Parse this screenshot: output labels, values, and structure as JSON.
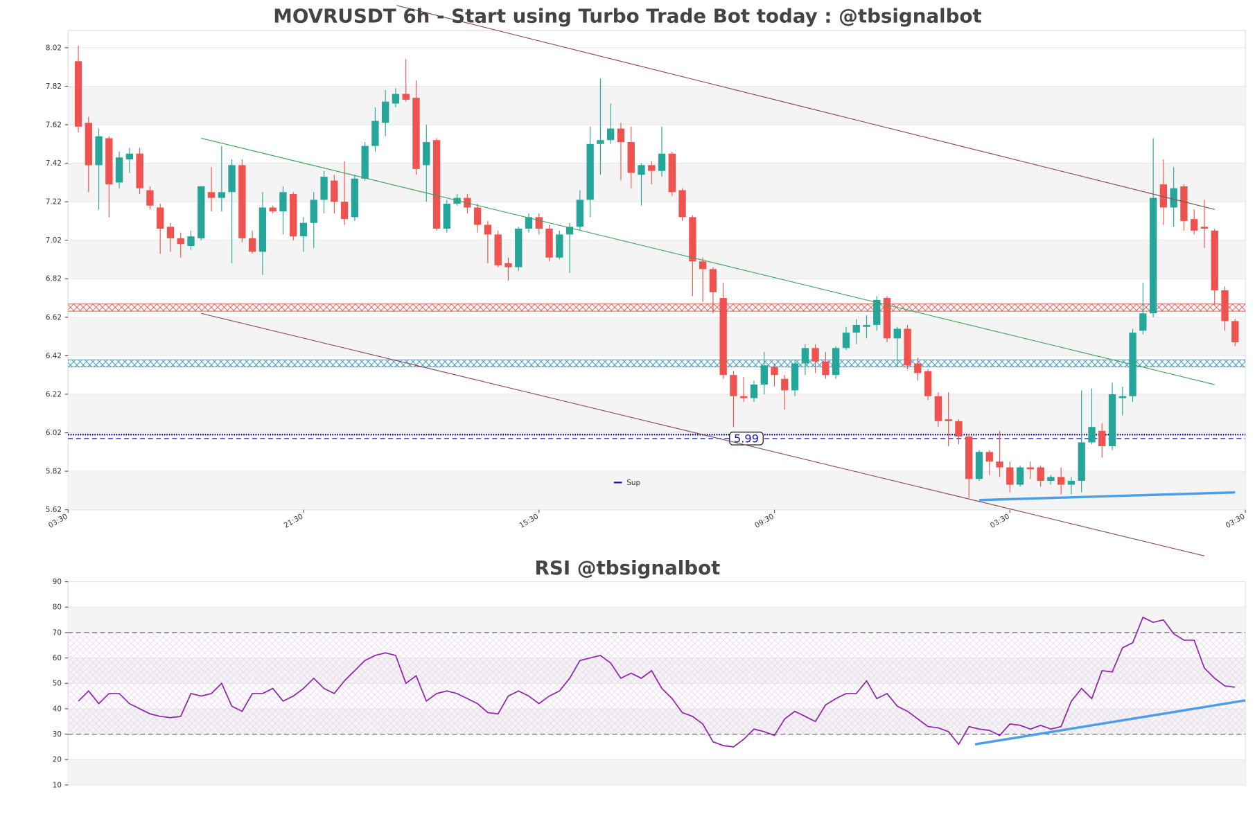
{
  "chart_data": [
    {
      "type": "candlestick",
      "title": "MOVRUSDT 6h - Start using Turbo Trade Bot today : @tbsignalbot",
      "up_color": "#26a69a",
      "down_color": "#ef5350",
      "open": [
        7.95,
        7.63,
        7.41,
        7.55,
        7.32,
        7.44,
        7.47,
        7.28,
        7.19,
        7.09,
        7.03,
        6.99,
        7.03,
        7.27,
        7.24,
        7.27,
        7.41,
        7.03,
        6.96,
        7.19,
        7.17,
        7.26,
        7.04,
        7.11,
        7.23,
        7.33,
        7.22,
        7.14,
        7.34,
        7.51,
        7.63,
        7.73,
        7.78,
        7.76,
        7.41,
        7.54,
        7.08,
        7.21,
        7.24,
        7.19,
        7.1,
        7.05,
        6.9,
        6.88,
        7.08,
        7.14,
        7.08,
        6.93,
        7.05,
        7.09,
        7.23,
        7.52,
        7.54,
        7.6,
        7.53,
        7.36,
        7.41,
        7.38,
        7.47,
        7.28,
        7.14,
        6.91,
        6.87,
        6.72,
        6.32,
        6.21,
        6.2,
        6.27,
        6.36,
        6.3,
        6.24,
        6.38,
        6.46,
        6.39,
        6.32,
        6.46,
        6.54,
        6.57,
        6.58,
        6.72,
        6.51,
        6.56,
        6.38,
        6.34,
        6.21,
        6.09,
        6.08,
        6.0,
        5.78,
        5.92,
        5.87,
        5.84,
        5.75,
        5.84,
        5.84,
        5.77,
        5.79,
        5.75,
        5.77,
        5.97,
        6.03,
        5.95,
        6.2,
        6.21,
        6.55,
        6.64,
        7.31,
        7.19,
        7.3,
        7.13,
        7.09,
        7.07,
        6.76,
        6.6
      ],
      "high": [
        8.03,
        7.66,
        7.6,
        7.56,
        7.48,
        7.5,
        7.5,
        7.3,
        7.21,
        7.11,
        7.06,
        7.07,
        7.3,
        7.4,
        7.51,
        7.44,
        7.44,
        7.07,
        7.27,
        7.2,
        7.3,
        7.27,
        7.14,
        7.27,
        7.38,
        7.36,
        7.43,
        7.36,
        7.53,
        7.71,
        7.8,
        7.81,
        7.96,
        7.85,
        7.62,
        7.55,
        7.23,
        7.26,
        7.26,
        7.21,
        7.12,
        7.07,
        6.93,
        7.09,
        7.16,
        7.16,
        7.1,
        7.07,
        7.11,
        7.28,
        7.61,
        7.86,
        7.73,
        7.63,
        7.61,
        7.42,
        7.43,
        7.61,
        7.48,
        7.29,
        7.15,
        6.93,
        6.88,
        6.8,
        6.34,
        6.31,
        6.29,
        6.44,
        6.38,
        6.32,
        6.4,
        6.48,
        6.48,
        6.44,
        6.47,
        6.57,
        6.61,
        6.63,
        6.73,
        6.73,
        6.57,
        6.58,
        6.41,
        6.35,
        6.23,
        6.23,
        6.09,
        6.01,
        5.93,
        5.93,
        6.03,
        5.87,
        5.85,
        5.87,
        5.85,
        5.8,
        5.84,
        5.79,
        6.24,
        6.25,
        6.07,
        6.28,
        6.26,
        6.56,
        6.8,
        7.55,
        7.44,
        7.4,
        7.31,
        7.18,
        7.23,
        7.08,
        6.78,
        6.61
      ],
      "low": [
        7.58,
        7.27,
        7.18,
        7.14,
        7.29,
        7.37,
        7.26,
        7.18,
        6.95,
        6.96,
        6.93,
        6.97,
        7.02,
        7.17,
        7.17,
        6.9,
        7.01,
        6.95,
        6.84,
        7.16,
        7.05,
        7.02,
        6.96,
        6.98,
        7.16,
        7.16,
        7.1,
        7.12,
        7.33,
        7.48,
        7.56,
        7.71,
        7.74,
        7.36,
        7.22,
        7.07,
        7.06,
        7.2,
        7.16,
        7.06,
        6.9,
        6.88,
        6.81,
        6.86,
        7.06,
        7.05,
        6.91,
        6.92,
        6.85,
        7.07,
        7.14,
        7.36,
        7.52,
        7.33,
        7.29,
        7.2,
        7.31,
        7.35,
        7.25,
        7.12,
        6.73,
        6.7,
        6.64,
        6.3,
        6.05,
        6.18,
        6.18,
        6.22,
        6.26,
        6.14,
        6.21,
        6.32,
        6.33,
        6.3,
        6.3,
        6.45,
        6.48,
        6.51,
        6.55,
        6.49,
        6.36,
        6.35,
        6.29,
        6.19,
        6.05,
        5.95,
        5.96,
        5.68,
        5.77,
        5.8,
        5.79,
        5.71,
        5.74,
        5.78,
        5.74,
        5.75,
        5.7,
        5.7,
        5.71,
        5.96,
        5.89,
        5.93,
        6.11,
        6.18,
        6.53,
        6.62,
        7.1,
        7.09,
        7.07,
        7.05,
        6.98,
        6.68,
        6.55,
        6.47
      ],
      "close": [
        7.61,
        7.41,
        7.56,
        7.31,
        7.45,
        7.47,
        7.29,
        7.2,
        7.08,
        7.03,
        7.0,
        7.04,
        7.3,
        7.24,
        7.27,
        7.41,
        7.03,
        6.96,
        7.19,
        7.17,
        7.27,
        7.04,
        7.11,
        7.23,
        7.35,
        7.22,
        7.13,
        7.34,
        7.51,
        7.64,
        7.74,
        7.78,
        7.75,
        7.39,
        7.53,
        7.08,
        7.21,
        7.24,
        7.19,
        7.1,
        7.05,
        6.89,
        6.88,
        7.08,
        7.14,
        7.08,
        6.93,
        7.05,
        7.09,
        7.23,
        7.52,
        7.54,
        7.6,
        7.53,
        7.37,
        7.41,
        7.38,
        7.47,
        7.27,
        7.14,
        6.91,
        6.87,
        6.75,
        6.32,
        6.21,
        6.2,
        6.27,
        6.37,
        6.32,
        6.24,
        6.38,
        6.46,
        6.39,
        6.32,
        6.46,
        6.54,
        6.58,
        6.58,
        6.71,
        6.51,
        6.56,
        6.37,
        6.33,
        6.21,
        6.08,
        6.08,
        6.0,
        5.78,
        5.92,
        5.87,
        5.84,
        5.75,
        5.84,
        5.83,
        5.77,
        5.79,
        5.75,
        5.77,
        5.97,
        6.05,
        5.95,
        6.22,
        6.21,
        6.54,
        6.64,
        7.24,
        7.19,
        7.29,
        7.12,
        7.07,
        7.08,
        6.76,
        6.6,
        6.49
      ],
      "xlim": [
        -1,
        114
      ],
      "xticks": [
        {
          "value": -1,
          "label": "03:30"
        },
        {
          "value": 22,
          "label": "21:30"
        },
        {
          "value": 45,
          "label": "15:30"
        },
        {
          "value": 68,
          "label": "09:30"
        },
        {
          "value": 91,
          "label": "03:30"
        },
        {
          "value": 114,
          "label": "03:30"
        }
      ],
      "ylim": [
        5.62,
        8.11
      ],
      "yticks": [
        5.62,
        5.82,
        6.02,
        6.22,
        6.42,
        6.62,
        6.82,
        7.02,
        7.22,
        7.42,
        7.62,
        7.82,
        8.02
      ],
      "hlines": [
        {
          "value": 6.67,
          "color": "#d9534f",
          "style": "hatch"
        },
        {
          "value": 6.38,
          "color": "#1a96c8",
          "style": "hatch"
        },
        {
          "value": 6.01,
          "color": "#000080",
          "style": "dotted"
        },
        {
          "name": "Sup",
          "value": 5.99,
          "color": "#1010c0",
          "style": "dashed"
        }
      ],
      "trendlines": [
        {
          "color": "#8b4a5a",
          "x": [
            31.1,
            111.0
          ],
          "y": [
            8.24,
            7.18
          ]
        },
        {
          "color": "#8b4a5a",
          "x": [
            12.0,
            110.0
          ],
          "y": [
            6.64,
            5.38
          ]
        },
        {
          "color": "#3aa35a",
          "x": [
            12.0,
            111.0
          ],
          "y": [
            7.55,
            6.27
          ]
        },
        {
          "color": "#4a9fe8",
          "x": [
            88.0,
            113.0
          ],
          "y": [
            5.67,
            5.71
          ]
        }
      ]
    },
    {
      "type": "line",
      "title": "RSI @tbsignalbot",
      "color": "#8e24aa",
      "values": [
        43,
        47,
        42,
        46,
        46,
        42,
        40,
        38,
        37,
        36.5,
        37,
        46,
        45,
        46,
        50,
        41,
        39,
        46,
        46,
        48,
        43,
        45,
        48,
        52,
        48,
        46,
        51,
        55,
        59,
        61,
        62,
        61,
        50,
        53,
        43,
        46,
        47,
        46,
        44,
        42,
        38.5,
        38,
        45,
        47,
        45,
        42,
        45,
        47,
        52,
        59,
        60,
        61,
        58,
        52,
        54,
        52,
        55,
        48,
        44,
        38.5,
        37,
        34,
        27,
        25.5,
        25,
        28,
        32,
        31,
        29.5,
        36,
        39,
        37,
        35,
        41.5,
        44,
        46,
        46,
        51,
        44,
        46,
        41,
        39,
        36,
        33,
        32.5,
        31,
        26,
        33,
        32,
        31.5,
        29.5,
        34,
        33.5,
        32,
        33.5,
        32,
        33,
        43,
        48,
        44,
        55,
        54.5,
        64,
        66,
        76,
        74,
        75,
        69.5,
        67,
        67,
        56,
        52,
        49,
        48.5
      ],
      "xlim": [
        -1,
        114
      ],
      "ylim": [
        10,
        90
      ],
      "yticks": [
        10,
        20,
        30,
        40,
        50,
        60,
        70,
        80,
        90
      ],
      "hlines": [
        {
          "value": 70,
          "color": "#555555",
          "style": "dashed"
        },
        {
          "value": 30,
          "color": "#555555",
          "style": "dashed"
        }
      ],
      "trendlines": [
        {
          "color": "#4a9fe8",
          "x": [
            87.6,
            114
          ],
          "y": [
            26,
            43.3
          ]
        }
      ]
    }
  ]
}
